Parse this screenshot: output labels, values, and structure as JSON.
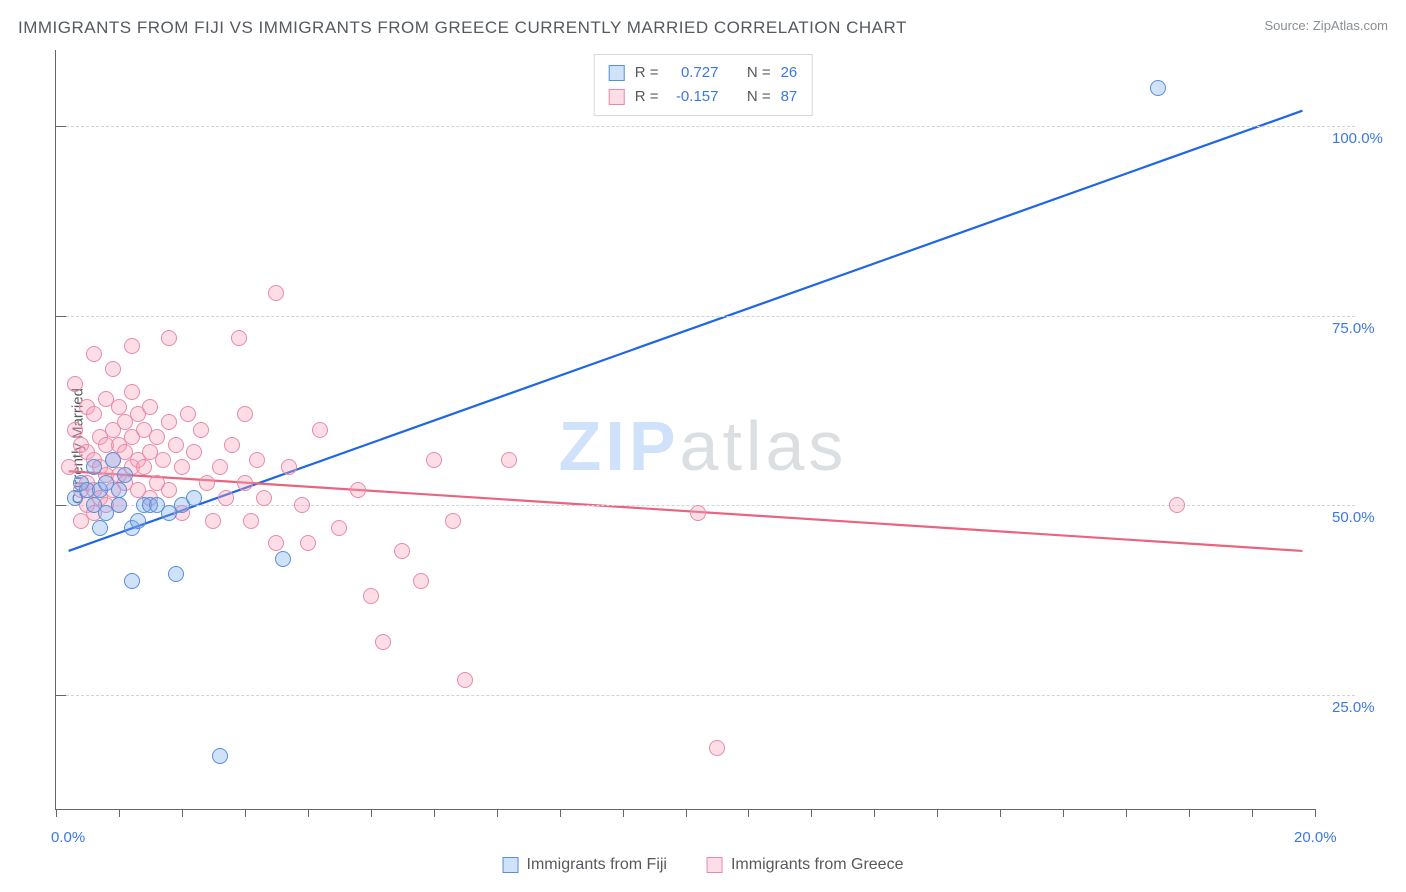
{
  "title": "IMMIGRANTS FROM FIJI VS IMMIGRANTS FROM GREECE CURRENTLY MARRIED CORRELATION CHART",
  "source": "Source: ZipAtlas.com",
  "watermark_a": "ZIP",
  "watermark_b": "atlas",
  "chart": {
    "type": "scatter",
    "xlim": [
      0,
      20
    ],
    "ylim": [
      10,
      110
    ],
    "x_tick_labels": {
      "min": "0.0%",
      "max": "20.0%"
    },
    "y_grid": [
      25,
      50,
      75,
      100
    ],
    "y_tick_labels": [
      "25.0%",
      "50.0%",
      "75.0%",
      "100.0%"
    ],
    "ylabel": "Currently Married",
    "background_color": "#ffffff",
    "grid_color": "#d0d4d8",
    "axis_color": "#666666",
    "tick_label_color": "#3b78e7",
    "marker_radius": 8,
    "series": [
      {
        "name": "Immigrants from Fiji",
        "color_fill": "rgba(120,170,240,0.35)",
        "color_stroke": "#5a8ed8",
        "color_line": "#1f66e5",
        "R": "0.727",
        "N": "26",
        "trend": {
          "x1": 0.2,
          "y1": 44.0,
          "x2": 19.8,
          "y2": 102.0
        },
        "points": [
          [
            0.3,
            51
          ],
          [
            0.4,
            53
          ],
          [
            0.5,
            52
          ],
          [
            0.6,
            50
          ],
          [
            0.6,
            55
          ],
          [
            0.7,
            52
          ],
          [
            0.8,
            53
          ],
          [
            0.8,
            49
          ],
          [
            0.9,
            56
          ],
          [
            1.0,
            50
          ],
          [
            1.0,
            52
          ],
          [
            1.1,
            54
          ],
          [
            1.2,
            47
          ],
          [
            1.3,
            48
          ],
          [
            1.4,
            50
          ],
          [
            1.5,
            50
          ],
          [
            1.6,
            50
          ],
          [
            1.8,
            49
          ],
          [
            2.0,
            50
          ],
          [
            2.2,
            51
          ],
          [
            1.2,
            40
          ],
          [
            1.9,
            41
          ],
          [
            3.6,
            43
          ],
          [
            2.6,
            17
          ],
          [
            0.7,
            47
          ],
          [
            17.5,
            105
          ]
        ]
      },
      {
        "name": "Immigrants from Greece",
        "color_fill": "rgba(248,160,185,0.35)",
        "color_stroke": "#e88aa8",
        "color_line": "#e9657f",
        "R": "-0.157",
        "N": "87",
        "trend": {
          "x1": 0.2,
          "y1": 54.5,
          "x2": 19.8,
          "y2": 44.0
        },
        "points": [
          [
            0.2,
            55
          ],
          [
            0.3,
            66
          ],
          [
            0.3,
            60
          ],
          [
            0.4,
            58
          ],
          [
            0.4,
            52
          ],
          [
            0.4,
            48
          ],
          [
            0.5,
            63
          ],
          [
            0.5,
            57
          ],
          [
            0.5,
            53
          ],
          [
            0.5,
            50
          ],
          [
            0.6,
            70
          ],
          [
            0.6,
            62
          ],
          [
            0.6,
            56
          ],
          [
            0.6,
            52
          ],
          [
            0.6,
            49
          ],
          [
            0.7,
            59
          ],
          [
            0.7,
            55
          ],
          [
            0.7,
            51
          ],
          [
            0.8,
            64
          ],
          [
            0.8,
            58
          ],
          [
            0.8,
            54
          ],
          [
            0.8,
            50
          ],
          [
            0.9,
            68
          ],
          [
            0.9,
            60
          ],
          [
            0.9,
            56
          ],
          [
            0.9,
            52
          ],
          [
            1.0,
            63
          ],
          [
            1.0,
            58
          ],
          [
            1.0,
            54
          ],
          [
            1.0,
            50
          ],
          [
            1.1,
            61
          ],
          [
            1.1,
            57
          ],
          [
            1.1,
            53
          ],
          [
            1.2,
            71
          ],
          [
            1.2,
            65
          ],
          [
            1.2,
            59
          ],
          [
            1.2,
            55
          ],
          [
            1.3,
            62
          ],
          [
            1.3,
            56
          ],
          [
            1.3,
            52
          ],
          [
            1.4,
            60
          ],
          [
            1.4,
            55
          ],
          [
            1.5,
            63
          ],
          [
            1.5,
            57
          ],
          [
            1.5,
            51
          ],
          [
            1.6,
            59
          ],
          [
            1.6,
            53
          ],
          [
            1.7,
            56
          ],
          [
            1.8,
            72
          ],
          [
            1.8,
            61
          ],
          [
            1.8,
            52
          ],
          [
            1.9,
            58
          ],
          [
            2.0,
            55
          ],
          [
            2.0,
            49
          ],
          [
            2.1,
            62
          ],
          [
            2.2,
            57
          ],
          [
            2.3,
            60
          ],
          [
            2.4,
            53
          ],
          [
            2.5,
            48
          ],
          [
            2.6,
            55
          ],
          [
            2.7,
            51
          ],
          [
            2.8,
            58
          ],
          [
            2.9,
            72
          ],
          [
            3.0,
            62
          ],
          [
            3.0,
            53
          ],
          [
            3.1,
            48
          ],
          [
            3.2,
            56
          ],
          [
            3.3,
            51
          ],
          [
            3.5,
            45
          ],
          [
            3.7,
            55
          ],
          [
            3.9,
            50
          ],
          [
            4.0,
            45
          ],
          [
            4.2,
            60
          ],
          [
            4.5,
            47
          ],
          [
            4.8,
            52
          ],
          [
            5.0,
            38
          ],
          [
            5.2,
            32
          ],
          [
            5.5,
            44
          ],
          [
            5.8,
            40
          ],
          [
            6.0,
            56
          ],
          [
            6.3,
            48
          ],
          [
            6.5,
            27
          ],
          [
            7.2,
            56
          ],
          [
            10.2,
            49
          ],
          [
            10.5,
            18
          ],
          [
            17.8,
            50
          ],
          [
            3.5,
            78
          ]
        ]
      }
    ]
  },
  "legend_top": {
    "r_label": "R =",
    "n_label": "N ="
  },
  "legend_bottom": [
    {
      "cls": "blue",
      "label": "Immigrants from Fiji"
    },
    {
      "cls": "pink",
      "label": "Immigrants from Greece"
    }
  ]
}
